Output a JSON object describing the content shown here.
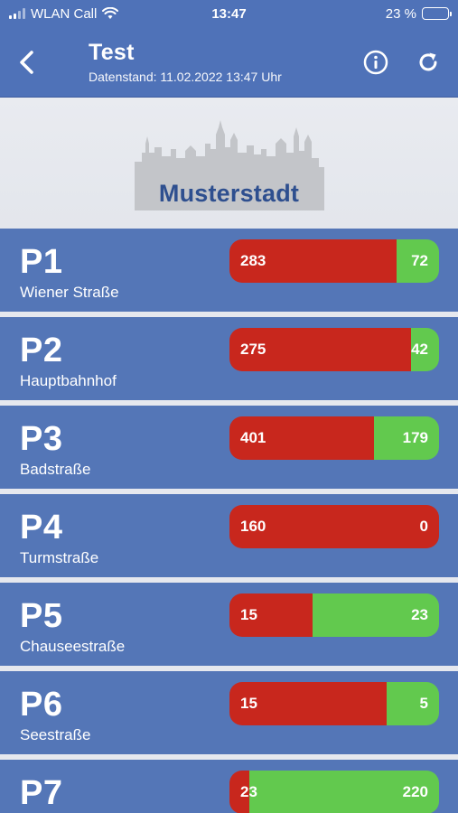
{
  "status_bar": {
    "carrier": "WLAN Call",
    "time": "13:47",
    "battery_percent": "23 %",
    "battery_level": 0.23
  },
  "header": {
    "title": "Test",
    "subtitle": "Datenstand: 11.02.2022 13:47 Uhr",
    "back_icon": "chevron-left-icon",
    "info_icon": "info-icon",
    "refresh_icon": "refresh-icon",
    "color": "#4f72b8"
  },
  "banner": {
    "logo_text": "Musterstadt"
  },
  "colors": {
    "occupied": "#c8271d",
    "free": "#62c94e",
    "row_background": "#5476b7"
  },
  "parking": [
    {
      "id": "P1",
      "name": "Wiener Straße",
      "occupied": "283",
      "free": "72"
    },
    {
      "id": "P2",
      "name": "Hauptbahnhof",
      "occupied": "275",
      "free": "42"
    },
    {
      "id": "P3",
      "name": "Badstraße",
      "occupied": "401",
      "free": "179"
    },
    {
      "id": "P4",
      "name": "Turmstraße",
      "occupied": "160",
      "free": "0"
    },
    {
      "id": "P5",
      "name": "Chauseestraße",
      "occupied": "15",
      "free": "23"
    },
    {
      "id": "P6",
      "name": "Seestraße",
      "occupied": "15",
      "free": "5"
    },
    {
      "id": "P7",
      "name": "",
      "occupied": "23",
      "free": "220"
    }
  ]
}
